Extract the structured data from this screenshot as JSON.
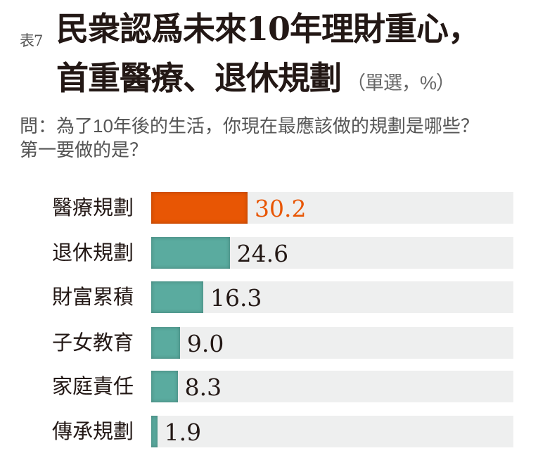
{
  "header": {
    "table_number": "表7",
    "title_line1": "民衆認爲未來10年理財重心，",
    "title_line2": "首重醫療、退休規劃",
    "title_note": "（單選，%）",
    "question_line1": "問：為了10年後的生活，你現在最應該做的規劃是哪些？",
    "question_line2": "第一要做的是？"
  },
  "colors": {
    "highlight": "#e85604",
    "bar": "#5aab9f",
    "track": "#eeefef",
    "text": "#231815"
  },
  "chart_data": {
    "type": "bar",
    "orientation": "horizontal",
    "title": "民衆認爲未來10年理財重心，首重醫療、退休規劃（單選，%）",
    "subtitle": "問：為了10年後的生活，你現在最應該做的規劃是哪些？第一要做的是？",
    "xlabel": "",
    "ylabel": "",
    "unit": "%",
    "xlim": [
      0,
      113.5
    ],
    "grid": false,
    "legend": null,
    "categories": [
      "醫療規劃",
      "退休規劃",
      "財富累積",
      "子女教育",
      "家庭責任",
      "傳承規劃"
    ],
    "values": [
      30.2,
      24.6,
      16.3,
      9.0,
      8.3,
      1.9
    ],
    "value_labels": [
      "30.2",
      "24.6",
      "16.3",
      "9.0",
      "8.3",
      "1.9"
    ],
    "highlighted_index": 0
  }
}
